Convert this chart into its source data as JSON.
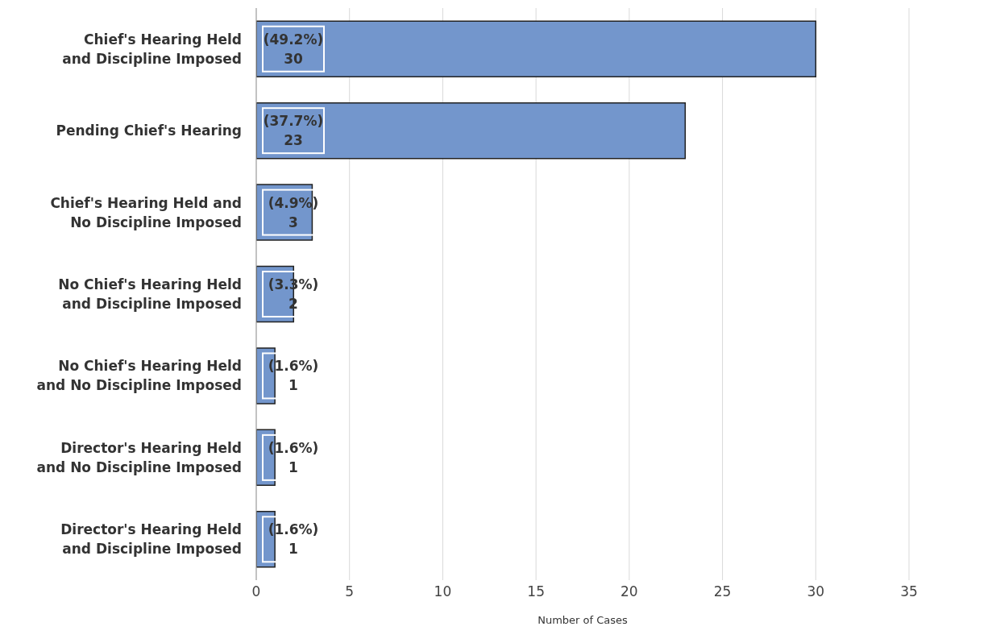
{
  "chart_data": {
    "type": "bar",
    "orientation": "horizontal",
    "xlabel": "Number of Cases",
    "categories": [
      "Chief's Hearing Held and Discipline Imposed",
      "Pending Chief's Hearing",
      "Chief's Hearing Held and No Discipline Imposed",
      "No Chief's Hearing Held and Discipline Imposed",
      "No Chief's Hearing Held and No Discipline Imposed",
      "Director's Hearing Held and No Discipline Imposed",
      "Director's Hearing Held and Discipline Imposed"
    ],
    "values": [
      30,
      23,
      3,
      2,
      1,
      1,
      1
    ],
    "value_labels": [
      "(49.2%)\n30",
      "(37.7%)\n23",
      "(4.9%)\n3",
      "(3.3%)\n2",
      "(1.6%)\n1",
      "(1.6%)\n1",
      "(1.6%)\n1"
    ],
    "color": "#7396cc",
    "xlim": [
      0,
      35
    ],
    "xticks": [
      0,
      5,
      10,
      15,
      20,
      25,
      30,
      35
    ],
    "grid": "x",
    "legend": false
  }
}
